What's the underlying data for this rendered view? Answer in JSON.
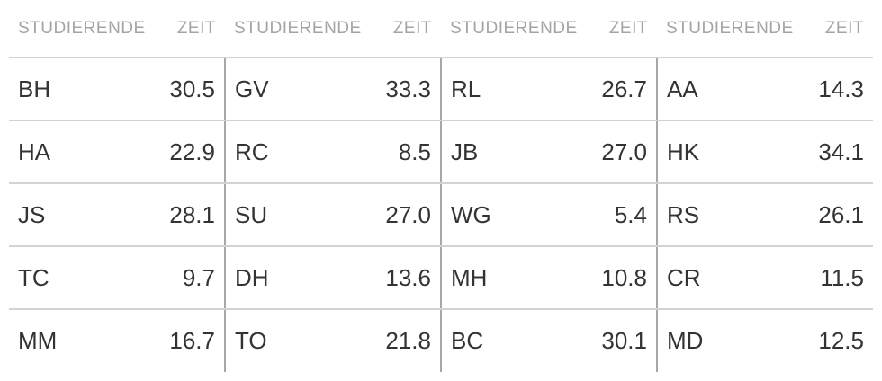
{
  "headers": {
    "name": "STUDIERENDE",
    "time": "ZEIT"
  },
  "groups": [
    {
      "rows": [
        {
          "name": "BH",
          "time": "30.5"
        },
        {
          "name": "HA",
          "time": "22.9"
        },
        {
          "name": "JS",
          "time": "28.1"
        },
        {
          "name": "TC",
          "time": "9.7"
        },
        {
          "name": "MM",
          "time": "16.7"
        }
      ]
    },
    {
      "rows": [
        {
          "name": "GV",
          "time": "33.3"
        },
        {
          "name": "RC",
          "time": "8.5"
        },
        {
          "name": "SU",
          "time": "27.0"
        },
        {
          "name": "DH",
          "time": "13.6"
        },
        {
          "name": "TO",
          "time": "21.8"
        }
      ]
    },
    {
      "rows": [
        {
          "name": "RL",
          "time": "26.7"
        },
        {
          "name": "JB",
          "time": "27.0"
        },
        {
          "name": "WG",
          "time": "5.4"
        },
        {
          "name": "MH",
          "time": "10.8"
        },
        {
          "name": "BC",
          "time": "30.1"
        }
      ]
    },
    {
      "rows": [
        {
          "name": "AA",
          "time": "14.3"
        },
        {
          "name": "HK",
          "time": "34.1"
        },
        {
          "name": "RS",
          "time": "26.1"
        },
        {
          "name": "CR",
          "time": "11.5"
        },
        {
          "name": "MD",
          "time": "12.5"
        }
      ]
    }
  ]
}
